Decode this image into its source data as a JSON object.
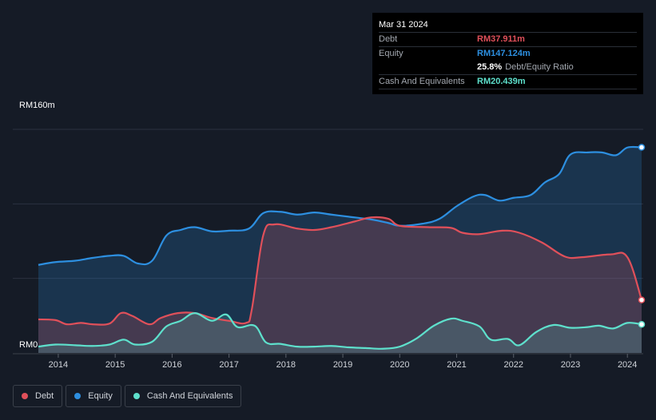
{
  "tooltip": {
    "date": "Mar 31 2024",
    "rows": [
      {
        "label": "Debt",
        "value": "RM37.911m",
        "color": "#e0505a"
      },
      {
        "label": "Equity",
        "value": "RM147.124m",
        "color": "#2d8fe0"
      },
      {
        "label": "",
        "value": "25.8%",
        "suffix": "Debt/Equity Ratio",
        "color": "#ffffff"
      },
      {
        "label": "Cash And Equivalents",
        "value": "RM20.439m",
        "color": "#5ee0cc"
      }
    ]
  },
  "legend": [
    {
      "label": "Debt",
      "color": "#e0505a"
    },
    {
      "label": "Equity",
      "color": "#2d8fe0"
    },
    {
      "label": "Cash And Equivalents",
      "color": "#5ee0cc"
    }
  ],
  "chart_data": {
    "type": "area",
    "y_top_label": "RM160m",
    "y_bottom_label": "RM0",
    "ylim": [
      0,
      160
    ],
    "xlim": [
      2013.65,
      2024.25
    ],
    "x_ticks": [
      "2014",
      "2015",
      "2016",
      "2017",
      "2018",
      "2019",
      "2020",
      "2021",
      "2022",
      "2023",
      "2024"
    ],
    "grid": true,
    "legend_position": "bottom-left",
    "series": [
      {
        "name": "Debt",
        "color": "#e0505a",
        "points": [
          [
            2013.65,
            24
          ],
          [
            2013.95,
            23.5
          ],
          [
            2014.15,
            20.5
          ],
          [
            2014.4,
            21.5
          ],
          [
            2014.6,
            20.5
          ],
          [
            2014.9,
            21
          ],
          [
            2015.1,
            28.5
          ],
          [
            2015.3,
            26.5
          ],
          [
            2015.6,
            20.5
          ],
          [
            2015.8,
            25
          ],
          [
            2016.1,
            28.5
          ],
          [
            2016.4,
            28.5
          ],
          [
            2016.7,
            25
          ],
          [
            2017.0,
            23
          ],
          [
            2017.3,
            21.5
          ],
          [
            2017.4,
            31
          ],
          [
            2017.6,
            84
          ],
          [
            2017.8,
            92
          ],
          [
            2018.2,
            89
          ],
          [
            2018.5,
            88
          ],
          [
            2018.8,
            90
          ],
          [
            2019.2,
            94
          ],
          [
            2019.5,
            97
          ],
          [
            2019.8,
            96
          ],
          [
            2020.0,
            91
          ],
          [
            2020.5,
            90
          ],
          [
            2020.9,
            89.5
          ],
          [
            2021.1,
            86
          ],
          [
            2021.4,
            85
          ],
          [
            2021.8,
            87.5
          ],
          [
            2022.1,
            86
          ],
          [
            2022.5,
            79
          ],
          [
            2022.9,
            69
          ],
          [
            2023.2,
            68.5
          ],
          [
            2023.7,
            70.5
          ],
          [
            2024.0,
            68.5
          ],
          [
            2024.25,
            37.911
          ]
        ]
      },
      {
        "name": "Equity",
        "color": "#2d8fe0",
        "points": [
          [
            2013.65,
            63
          ],
          [
            2013.95,
            65
          ],
          [
            2014.3,
            66
          ],
          [
            2014.6,
            68
          ],
          [
            2014.9,
            69.5
          ],
          [
            2015.15,
            69.5
          ],
          [
            2015.4,
            64
          ],
          [
            2015.65,
            66
          ],
          [
            2015.9,
            84
          ],
          [
            2016.15,
            88
          ],
          [
            2016.4,
            90
          ],
          [
            2016.7,
            87
          ],
          [
            2017.0,
            87.5
          ],
          [
            2017.35,
            89
          ],
          [
            2017.6,
            100
          ],
          [
            2017.9,
            101
          ],
          [
            2018.2,
            99
          ],
          [
            2018.5,
            100.5
          ],
          [
            2018.8,
            99
          ],
          [
            2019.1,
            97.5
          ],
          [
            2019.5,
            95.5
          ],
          [
            2019.8,
            93
          ],
          [
            2020.0,
            91
          ],
          [
            2020.4,
            92.5
          ],
          [
            2020.7,
            96
          ],
          [
            2021.0,
            105
          ],
          [
            2021.3,
            112
          ],
          [
            2021.5,
            113
          ],
          [
            2021.75,
            109
          ],
          [
            2022.0,
            111
          ],
          [
            2022.3,
            113
          ],
          [
            2022.55,
            122
          ],
          [
            2022.8,
            128
          ],
          [
            2023.0,
            142
          ],
          [
            2023.3,
            143.5
          ],
          [
            2023.55,
            143.5
          ],
          [
            2023.8,
            141.5
          ],
          [
            2024.0,
            147
          ],
          [
            2024.25,
            147.124
          ]
        ]
      },
      {
        "name": "Cash And Equivalents",
        "color": "#5ee0cc",
        "points": [
          [
            2013.65,
            4.5
          ],
          [
            2013.95,
            6
          ],
          [
            2014.3,
            5.5
          ],
          [
            2014.6,
            5
          ],
          [
            2014.9,
            6
          ],
          [
            2015.15,
            9.5
          ],
          [
            2015.35,
            6
          ],
          [
            2015.65,
            8
          ],
          [
            2015.9,
            19
          ],
          [
            2016.15,
            23
          ],
          [
            2016.4,
            28.5
          ],
          [
            2016.7,
            23
          ],
          [
            2016.95,
            27.5
          ],
          [
            2017.15,
            18.5
          ],
          [
            2017.45,
            19.5
          ],
          [
            2017.65,
            7.5
          ],
          [
            2017.9,
            6.5
          ],
          [
            2018.2,
            4.5
          ],
          [
            2018.5,
            4.5
          ],
          [
            2018.8,
            5
          ],
          [
            2019.1,
            4
          ],
          [
            2019.4,
            3.5
          ],
          [
            2019.7,
            3
          ],
          [
            2020.0,
            4.5
          ],
          [
            2020.3,
            10.5
          ],
          [
            2020.6,
            19.5
          ],
          [
            2020.9,
            24.5
          ],
          [
            2021.1,
            23
          ],
          [
            2021.4,
            19
          ],
          [
            2021.6,
            9.5
          ],
          [
            2021.9,
            10
          ],
          [
            2022.1,
            5.5
          ],
          [
            2022.4,
            15
          ],
          [
            2022.7,
            20
          ],
          [
            2023.0,
            18
          ],
          [
            2023.3,
            18.5
          ],
          [
            2023.5,
            19.5
          ],
          [
            2023.75,
            17.5
          ],
          [
            2024.0,
            21.5
          ],
          [
            2024.25,
            20.439
          ]
        ]
      }
    ]
  }
}
